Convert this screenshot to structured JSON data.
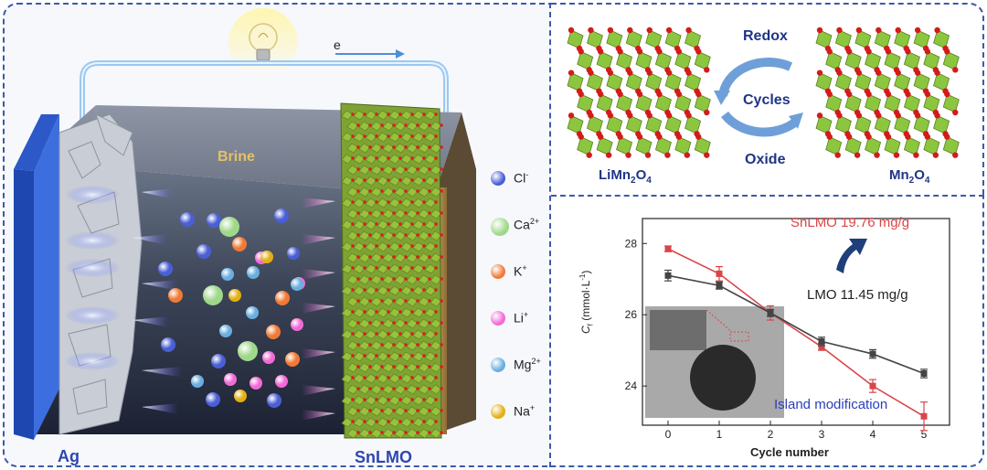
{
  "battery": {
    "electron": "e",
    "brine": "Brine",
    "left_electrode": "Ag",
    "right_electrode": "SnLMO"
  },
  "legend": [
    {
      "ion": "Cl",
      "charge": "-",
      "color": "#4a5fd6"
    },
    {
      "ion": "Ca",
      "charge": "2+",
      "color": "#9fd88a"
    },
    {
      "ion": "K",
      "charge": "+",
      "color": "#f07a35"
    },
    {
      "ion": "Li",
      "charge": "+",
      "color": "#f26ad6"
    },
    {
      "ion": "Mg",
      "charge": "2+",
      "color": "#6aaee0"
    },
    {
      "ion": "Na",
      "charge": "+",
      "color": "#e3b012"
    }
  ],
  "cycle_diagram": {
    "top": "Redox",
    "middle": "Cycles",
    "bottom": "Oxide",
    "left_formula": {
      "a": "LiMn",
      "s1": "2",
      "b": "O",
      "s2": "4"
    },
    "right_formula": {
      "a": "Mn",
      "s1": "2",
      "b": "O",
      "s2": "4"
    }
  },
  "chart_data": {
    "type": "line",
    "x": [
      0,
      1,
      2,
      3,
      4,
      5
    ],
    "xlabel": "Cycle number",
    "ylabel": "C",
    "ylabel_sub": "f",
    "ylabel_unit": "(mmol·L",
    "ylabel_unit_sup": "-1",
    "ylabel_unit_end": ")",
    "xlim": [
      -0.5,
      5.5
    ],
    "ylim": [
      22.9,
      28.7
    ],
    "yticks": [
      24,
      26,
      28
    ],
    "series": [
      {
        "name": "SnLMO 19.76 mg/g",
        "color": "#d9454a",
        "values": [
          27.85,
          27.15,
          26.05,
          25.1,
          24.0,
          23.15
        ],
        "errors": [
          0.08,
          0.2,
          0.2,
          0.1,
          0.18,
          0.4
        ]
      },
      {
        "name": "LMO 11.45 mg/g",
        "color": "#444444",
        "values": [
          27.1,
          26.82,
          26.05,
          25.25,
          24.9,
          24.35
        ],
        "errors": [
          0.15,
          0.1,
          0.1,
          0.12,
          0.12,
          0.12
        ]
      }
    ],
    "inset_label": "Island modification"
  }
}
